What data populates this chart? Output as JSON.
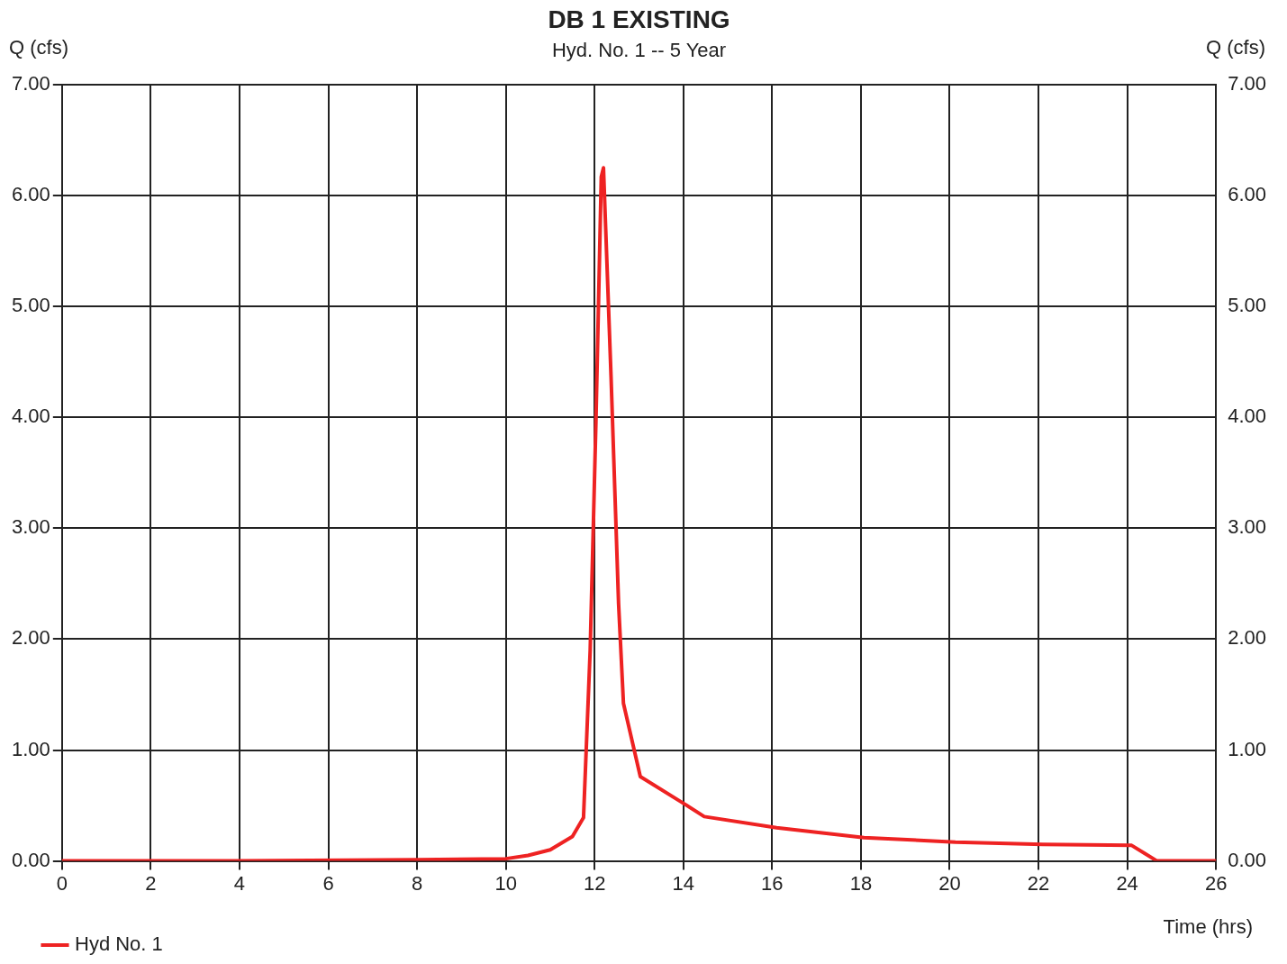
{
  "chart_data": {
    "type": "line",
    "title": "DB 1 EXISTING",
    "subtitle": "Hyd. No. 1 -- 5 Year",
    "xlabel": "Time (hrs)",
    "ylabel": "Q (cfs)",
    "y2label": "Q (cfs)",
    "series": [
      {
        "name": "Hyd No. 1",
        "color": "#ee2222",
        "x": [
          0,
          4,
          8,
          10,
          10.5,
          11,
          11.5,
          11.75,
          11.9,
          12.03,
          12.15,
          12.2,
          12.37,
          12.54,
          12.65,
          13.03,
          14.0,
          14.47,
          16.1,
          18.07,
          20.13,
          22.1,
          24.1,
          24.67,
          26
        ],
        "values": [
          0,
          0,
          0.01,
          0.02,
          0.05,
          0.1,
          0.22,
          0.39,
          1.9,
          3.96,
          6.17,
          6.25,
          4.37,
          2.32,
          1.42,
          0.76,
          0.52,
          0.4,
          0.3,
          0.21,
          0.17,
          0.15,
          0.14,
          0,
          0
        ]
      }
    ],
    "xlim": [
      0,
      26
    ],
    "xticks": [
      0,
      2,
      4,
      6,
      8,
      10,
      12,
      14,
      16,
      18,
      20,
      22,
      24,
      26
    ],
    "ylim": [
      0,
      7
    ],
    "yticks": [
      {
        "value": 0,
        "label": "0.00"
      },
      {
        "value": 1,
        "label": "1.00"
      },
      {
        "value": 2,
        "label": "2.00"
      },
      {
        "value": 3,
        "label": "3.00"
      },
      {
        "value": 4,
        "label": "4.00"
      },
      {
        "value": 5,
        "label": "5.00"
      },
      {
        "value": 6,
        "label": "6.00"
      },
      {
        "value": 7,
        "label": "7.00"
      }
    ],
    "y2lim": [
      0,
      7
    ],
    "y2ticks": [
      {
        "value": 0,
        "label": "0.00"
      },
      {
        "value": 1,
        "label": "1.00"
      },
      {
        "value": 2,
        "label": "2.00"
      },
      {
        "value": 3,
        "label": "3.00"
      },
      {
        "value": 4,
        "label": "4.00"
      },
      {
        "value": 5,
        "label": "5.00"
      },
      {
        "value": 6,
        "label": "6.00"
      },
      {
        "value": 7,
        "label": "7.00"
      }
    ],
    "grid": true,
    "legend": "bottom left",
    "marker": "none",
    "line_style": "solid"
  }
}
